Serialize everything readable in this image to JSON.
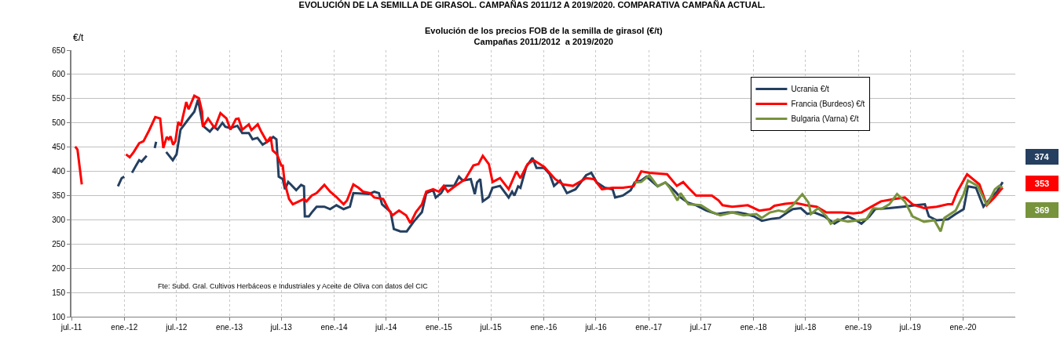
{
  "chart_data": {
    "type": "line",
    "title": "EVOLUCIÓN DE LA SEMILLA DE GIRASOL. CAMPAÑAS 2011/12 A 2019/2020. COMPARATIVA CAMPAÑA ACTUAL.",
    "subtitle": "Evolución de los precios FOB de la semilla de girasol (€/t)\nCampañas 2011/2012  a 2019/2020",
    "ylabel": "€/t",
    "annotations": [
      "Fte: Subd. Gral. Cultivos Herbáceos e Industriales y Aceite de Oliva con datos del CIC",
      "374",
      "353",
      "369"
    ],
    "xlim": [
      "2011-07-01",
      "2020-07-01"
    ],
    "xticks": [
      {
        "value": "2011-07-01",
        "label": "jul.-11"
      },
      {
        "value": "2012-01-01",
        "label": "ene.-12"
      },
      {
        "value": "2012-07-01",
        "label": "jul.-12"
      },
      {
        "value": "2013-01-01",
        "label": "ene.-13"
      },
      {
        "value": "2013-07-01",
        "label": "jul.-13"
      },
      {
        "value": "2014-01-01",
        "label": "ene.-14"
      },
      {
        "value": "2014-07-01",
        "label": "jul.-14"
      },
      {
        "value": "2015-01-01",
        "label": "ene.-15"
      },
      {
        "value": "2015-07-01",
        "label": "jul.-15"
      },
      {
        "value": "2016-01-01",
        "label": "ene.-16"
      },
      {
        "value": "2016-07-01",
        "label": "jul.-16"
      },
      {
        "value": "2017-01-01",
        "label": "ene.-17"
      },
      {
        "value": "2017-07-01",
        "label": "jul.-17"
      },
      {
        "value": "2018-01-01",
        "label": "ene.-18"
      },
      {
        "value": "2018-07-01",
        "label": "jul.-18"
      },
      {
        "value": "2019-01-01",
        "label": "ene.-19"
      },
      {
        "value": "2019-07-01",
        "label": "jul.-19"
      },
      {
        "value": "2020-01-01",
        "label": "ene.-20"
      }
    ],
    "ylim": [
      100,
      650
    ],
    "yticks": [
      100,
      150,
      200,
      250,
      300,
      350,
      400,
      450,
      500,
      550,
      600,
      650
    ],
    "grid": true,
    "legend": "top right",
    "marker": "none",
    "line_style": "solid",
    "series": [
      {
        "name": "Ucrania €/t",
        "color": "#243f60",
        "x": [
          "2011-12-10",
          "2011-12-23",
          "2012-01-01",
          "2012-01-14",
          "2012-01-28",
          "2012-02-11",
          "2012-02-22",
          "2012-03-01",
          "2012-03-19",
          "2012-04-01",
          "2012-04-16",
          "2012-04-21",
          "2012-05-10",
          "2012-05-26",
          "2012-06-18",
          "2012-07-01",
          "2012-07-15",
          "2012-08-12",
          "2012-09-01",
          "2012-09-14",
          "2012-10-01",
          "2012-10-25",
          "2012-11-08",
          "2012-11-21",
          "2012-12-08",
          "2012-12-18",
          "2013-01-05",
          "2013-01-29",
          "2013-02-15",
          "2013-03-10",
          "2013-03-23",
          "2013-04-09",
          "2013-04-27",
          "2013-05-19",
          "2013-06-03",
          "2013-06-14",
          "2013-06-22",
          "2013-07-06",
          "2013-07-14",
          "2013-07-25",
          "2013-08-03",
          "2013-08-22",
          "2013-09-08",
          "2013-09-18",
          "2013-09-21",
          "2013-10-05",
          "2013-10-15",
          "2013-11-01",
          "2013-11-28",
          "2013-12-18",
          "2014-01-09",
          "2014-02-03",
          "2014-02-25",
          "2014-03-09",
          "2014-05-02",
          "2014-05-21",
          "2014-06-06",
          "2014-06-17",
          "2014-07-17",
          "2014-07-28",
          "2014-08-20",
          "2014-09-11",
          "2014-10-05",
          "2014-11-03",
          "2014-11-18",
          "2014-12-12",
          "2014-12-21",
          "2015-01-09",
          "2015-01-24",
          "2015-02-23",
          "2015-03-12",
          "2015-03-25",
          "2015-04-22",
          "2015-05-06",
          "2015-05-14",
          "2015-05-25",
          "2015-06-03",
          "2015-06-24",
          "2015-07-07",
          "2015-08-02",
          "2015-09-01",
          "2015-09-13",
          "2015-09-21",
          "2015-10-04",
          "2015-10-12",
          "2015-11-01",
          "2015-11-23",
          "2015-12-07",
          "2016-01-03",
          "2016-01-22",
          "2016-02-06",
          "2016-02-27",
          "2016-03-22",
          "2016-04-21",
          "2016-05-28",
          "2016-06-15",
          "2016-07-04",
          "2016-08-01",
          "2016-08-28",
          "2016-09-06",
          "2016-10-03",
          "2016-10-30",
          "2016-11-13",
          "2016-12-06",
          "2016-12-24",
          "2017-02-01",
          "2017-02-28",
          "2017-03-26",
          "2017-04-22",
          "2017-05-19",
          "2017-06-15",
          "2017-07-21",
          "2017-08-26",
          "2017-10-04",
          "2017-11-09",
          "2017-12-06",
          "2018-01-03",
          "2018-01-30",
          "2018-03-05",
          "2018-04-02",
          "2018-04-29",
          "2018-05-18",
          "2018-06-15",
          "2018-07-07",
          "2018-08-01",
          "2018-09-05",
          "2018-10-10",
          "2018-10-29",
          "2018-11-26",
          "2018-12-24",
          "2019-01-12",
          "2019-02-09",
          "2019-03-01",
          "2019-04-19",
          "2019-06-05",
          "2019-07-21",
          "2019-08-21",
          "2019-09-04",
          "2019-10-01",
          "2019-11-09",
          "2019-12-06",
          "2020-01-03",
          "2020-01-18",
          "2020-02-15",
          "2020-03-12",
          "2020-04-09",
          "2020-04-28",
          "2020-05-18"
        ],
        "values": [
          369,
          386,
          389,
          null,
          397,
          412,
          423,
          420,
          432,
          null,
          448,
          461,
          null,
          440,
          423,
          435,
          486,
          508,
          523,
          548,
          494,
          482,
          492,
          486,
          500,
          492,
          489,
          494,
          479,
          479,
          466,
          469,
          455,
          463,
          471,
          466,
          389,
          384,
          363,
          378,
          373,
          361,
          372,
          369,
          307,
          307,
          315,
          327,
          327,
          322,
          330,
          322,
          327,
          355,
          353,
          358,
          355,
          332,
          316,
          281,
          276,
          276,
          296,
          316,
          355,
          361,
          346,
          355,
          370,
          370,
          389,
          381,
          384,
          353,
          377,
          384,
          338,
          347,
          366,
          370,
          346,
          358,
          350,
          369,
          366,
          409,
          428,
          407,
          407,
          394,
          370,
          381,
          355,
          363,
          392,
          397,
          377,
          366,
          363,
          346,
          350,
          361,
          377,
          381,
          389,
          369,
          377,
          363,
          346,
          335,
          330,
          319,
          312,
          315,
          315,
          312,
          307,
          298,
          302,
          304,
          315,
          322,
          324,
          312,
          315,
          307,
          292,
          299,
          307,
          299,
          292,
          307,
          322,
          324,
          327,
          330,
          332,
          307,
          299,
          301,
          312,
          322,
          369,
          366,
          327,
          347,
          358,
          378
        ]
      },
      {
        "name": "Francia (Burdeos) €/t",
        "color": "#ff0000",
        "x": [
          "2011-07-14",
          "2011-07-22",
          "2011-08-06",
          "2011-10-01",
          "2012-01-07",
          "2012-01-20",
          "2012-02-03",
          "2012-02-22",
          "2012-03-08",
          "2012-03-28",
          "2012-04-18",
          "2012-05-05",
          "2012-05-16",
          "2012-05-28",
          "2012-06-04",
          "2012-06-10",
          "2012-06-19",
          "2012-06-27",
          "2012-07-07",
          "2012-07-16",
          "2012-08-04",
          "2012-08-12",
          "2012-09-01",
          "2012-09-17",
          "2012-09-28",
          "2012-10-01",
          "2012-10-19",
          "2012-11-11",
          "2012-12-01",
          "2012-12-22",
          "2013-01-05",
          "2013-01-24",
          "2013-02-02",
          "2013-02-15",
          "2013-03-10",
          "2013-03-19",
          "2013-04-10",
          "2013-04-22",
          "2013-05-12",
          "2013-05-25",
          "2013-06-01",
          "2013-06-16",
          "2013-07-01",
          "2013-07-06",
          "2013-07-13",
          "2013-07-28",
          "2013-08-10",
          "2013-09-18",
          "2013-09-27",
          "2013-10-15",
          "2013-11-01",
          "2013-11-28",
          "2013-12-18",
          "2014-01-09",
          "2014-02-03",
          "2014-02-15",
          "2014-03-09",
          "2014-03-27",
          "2014-04-12",
          "2014-05-06",
          "2014-05-21",
          "2014-06-21",
          "2014-07-09",
          "2014-07-23",
          "2014-08-15",
          "2014-09-09",
          "2014-09-24",
          "2014-10-13",
          "2014-11-03",
          "2014-11-18",
          "2014-12-12",
          "2015-01-01",
          "2015-01-18",
          "2015-02-01",
          "2015-02-28",
          "2015-04-03",
          "2015-05-01",
          "2015-05-19",
          "2015-06-03",
          "2015-06-24",
          "2015-07-07",
          "2015-08-02",
          "2015-09-01",
          "2015-09-28",
          "2015-10-12",
          "2015-11-06",
          "2015-11-27",
          "2016-01-03",
          "2016-02-10",
          "2016-03-09",
          "2016-04-12",
          "2016-05-28",
          "2016-06-24",
          "2016-07-22",
          "2016-08-28",
          "2016-10-03",
          "2016-11-09",
          "2016-12-06",
          "2017-01-03",
          "2017-03-06",
          "2017-04-09",
          "2017-05-01",
          "2017-05-19",
          "2017-06-15",
          "2017-08-09",
          "2017-09-01",
          "2017-09-15",
          "2017-10-19",
          "2017-12-12",
          "2018-01-21",
          "2018-02-27",
          "2018-03-15",
          "2018-04-21",
          "2018-05-25",
          "2018-07-03",
          "2018-08-09",
          "2018-09-12",
          "2018-11-06",
          "2018-12-15",
          "2019-01-12",
          "2019-02-16",
          "2019-03-21",
          "2019-05-08",
          "2019-06-12",
          "2019-07-09",
          "2019-08-18",
          "2019-10-01",
          "2019-11-09",
          "2019-11-24",
          "2019-12-12",
          "2020-01-15",
          "2020-02-27",
          "2020-03-24",
          "2020-04-21",
          "2020-05-06",
          "2020-05-18"
        ],
        "values": [
          451,
          445,
          373,
          null,
          435,
          429,
          440,
          458,
          462,
          485,
          512,
          509,
          448,
          471,
          466,
          472,
          455,
          462,
          502,
          494,
          543,
          528,
          556,
          551,
          523,
          492,
          509,
          489,
          520,
          509,
          486,
          508,
          509,
          486,
          497,
          485,
          497,
          482,
          461,
          471,
          443,
          435,
          412,
          412,
          376,
          343,
          332,
          343,
          338,
          350,
          355,
          372,
          358,
          347,
          332,
          340,
          373,
          366,
          358,
          355,
          346,
          343,
          322,
          309,
          319,
          309,
          293,
          316,
          332,
          358,
          363,
          358,
          370,
          358,
          370,
          384,
          412,
          415,
          432,
          415,
          378,
          386,
          363,
          400,
          386,
          415,
          423,
          409,
          384,
          373,
          370,
          386,
          384,
          363,
          366,
          366,
          369,
          400,
          397,
          394,
          370,
          378,
          366,
          350,
          350,
          340,
          330,
          327,
          330,
          319,
          322,
          329,
          333,
          335,
          330,
          327,
          315,
          315,
          313,
          315,
          327,
          338,
          343,
          346,
          332,
          324,
          327,
          332,
          332,
          358,
          394,
          373,
          330,
          347,
          358,
          366
        ]
      },
      {
        "name": "Bulgaria (Varna) €/t",
        "color": "#77933c",
        "x": [
          "2016-11-13",
          "2016-12-06",
          "2017-01-03",
          "2017-02-01",
          "2017-02-28",
          "2017-03-15",
          "2017-04-11",
          "2017-04-22",
          "2017-05-19",
          "2017-07-02",
          "2017-08-09",
          "2017-09-07",
          "2017-10-19",
          "2017-11-28",
          "2018-01-11",
          "2018-01-30",
          "2018-02-27",
          "2018-03-29",
          "2018-04-21",
          "2018-05-18",
          "2018-05-25",
          "2018-06-20",
          "2018-07-12",
          "2018-07-20",
          "2018-08-14",
          "2018-09-12",
          "2018-09-27",
          "2018-10-21",
          "2018-11-26",
          "2019-01-01",
          "2019-01-29",
          "2019-02-22",
          "2019-03-21",
          "2019-04-19",
          "2019-05-16",
          "2019-06-12",
          "2019-07-09",
          "2019-08-18",
          "2019-09-23",
          "2019-10-15",
          "2019-10-28",
          "2019-12-06",
          "2020-01-03",
          "2020-01-18",
          "2020-02-21",
          "2020-03-24",
          "2020-04-21",
          "2020-05-06",
          "2020-05-18"
        ],
        "values": [
          377,
          378,
          392,
          369,
          377,
          366,
          340,
          355,
          332,
          330,
          316,
          309,
          315,
          309,
          312,
          304,
          315,
          319,
          316,
          330,
          335,
          353,
          335,
          312,
          324,
          307,
          292,
          301,
          296,
          299,
          301,
          324,
          322,
          332,
          353,
          338,
          307,
          296,
          299,
          276,
          304,
          319,
          353,
          381,
          370,
          330,
          363,
          370,
          366
        ]
      }
    ]
  }
}
